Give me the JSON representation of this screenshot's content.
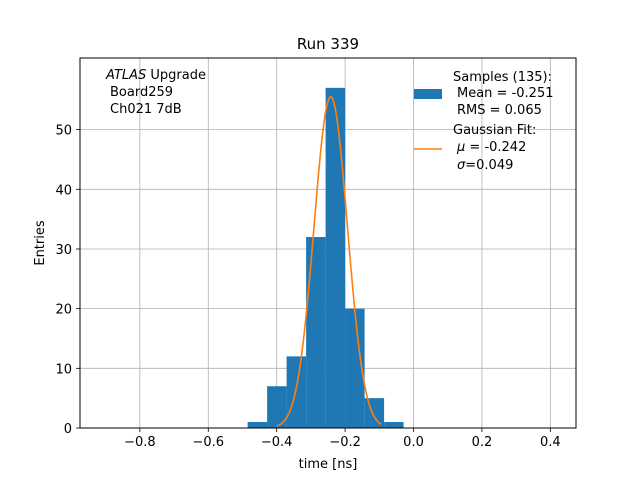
{
  "chart_data": {
    "type": "bar",
    "title": "Run 339",
    "xlabel": "time [ns]",
    "ylabel": "Entries",
    "xlim": [
      -0.975,
      0.475
    ],
    "ylim": [
      0,
      62
    ],
    "xticks": [
      -0.8,
      -0.6,
      -0.4,
      -0.2,
      0.0,
      0.2,
      0.4
    ],
    "xtick_labels": [
      "−0.8",
      "−0.6",
      "−0.4",
      "−0.2",
      "0.0",
      "0.2",
      "0.4"
    ],
    "yticks": [
      0,
      10,
      20,
      30,
      40,
      50
    ],
    "ytick_labels": [
      "0",
      "10",
      "20",
      "30",
      "40",
      "50"
    ],
    "grid": true,
    "annotation": {
      "italic_part": "ATLAS",
      "line1_rest": " Upgrade",
      "line2": "Board259",
      "line3": "Ch021 7dB"
    },
    "histogram": {
      "bin_edges": [
        -0.485,
        -0.428,
        -0.371,
        -0.314,
        -0.257,
        -0.2,
        -0.143,
        -0.086,
        -0.029
      ],
      "counts": [
        1,
        7,
        12,
        32,
        57,
        20,
        5,
        1
      ],
      "color": "#1f77b4"
    },
    "fit": {
      "amplitude": 55.5,
      "mu": -0.242,
      "sigma": 0.049,
      "x_range": [
        -0.4,
        -0.095
      ],
      "color": "#ff7f0e"
    },
    "legend": {
      "placement": "top-right",
      "samples": {
        "line1": "Samples (135):",
        "line2": "Mean = -0.251",
        "line3": "RMS = 0.065"
      },
      "fit": {
        "line1": "Gaussian Fit:",
        "mu_symbol": "μ",
        "mu_text": " = -0.242",
        "sigma_symbol": "σ",
        "sigma_text": "=0.049"
      }
    }
  }
}
